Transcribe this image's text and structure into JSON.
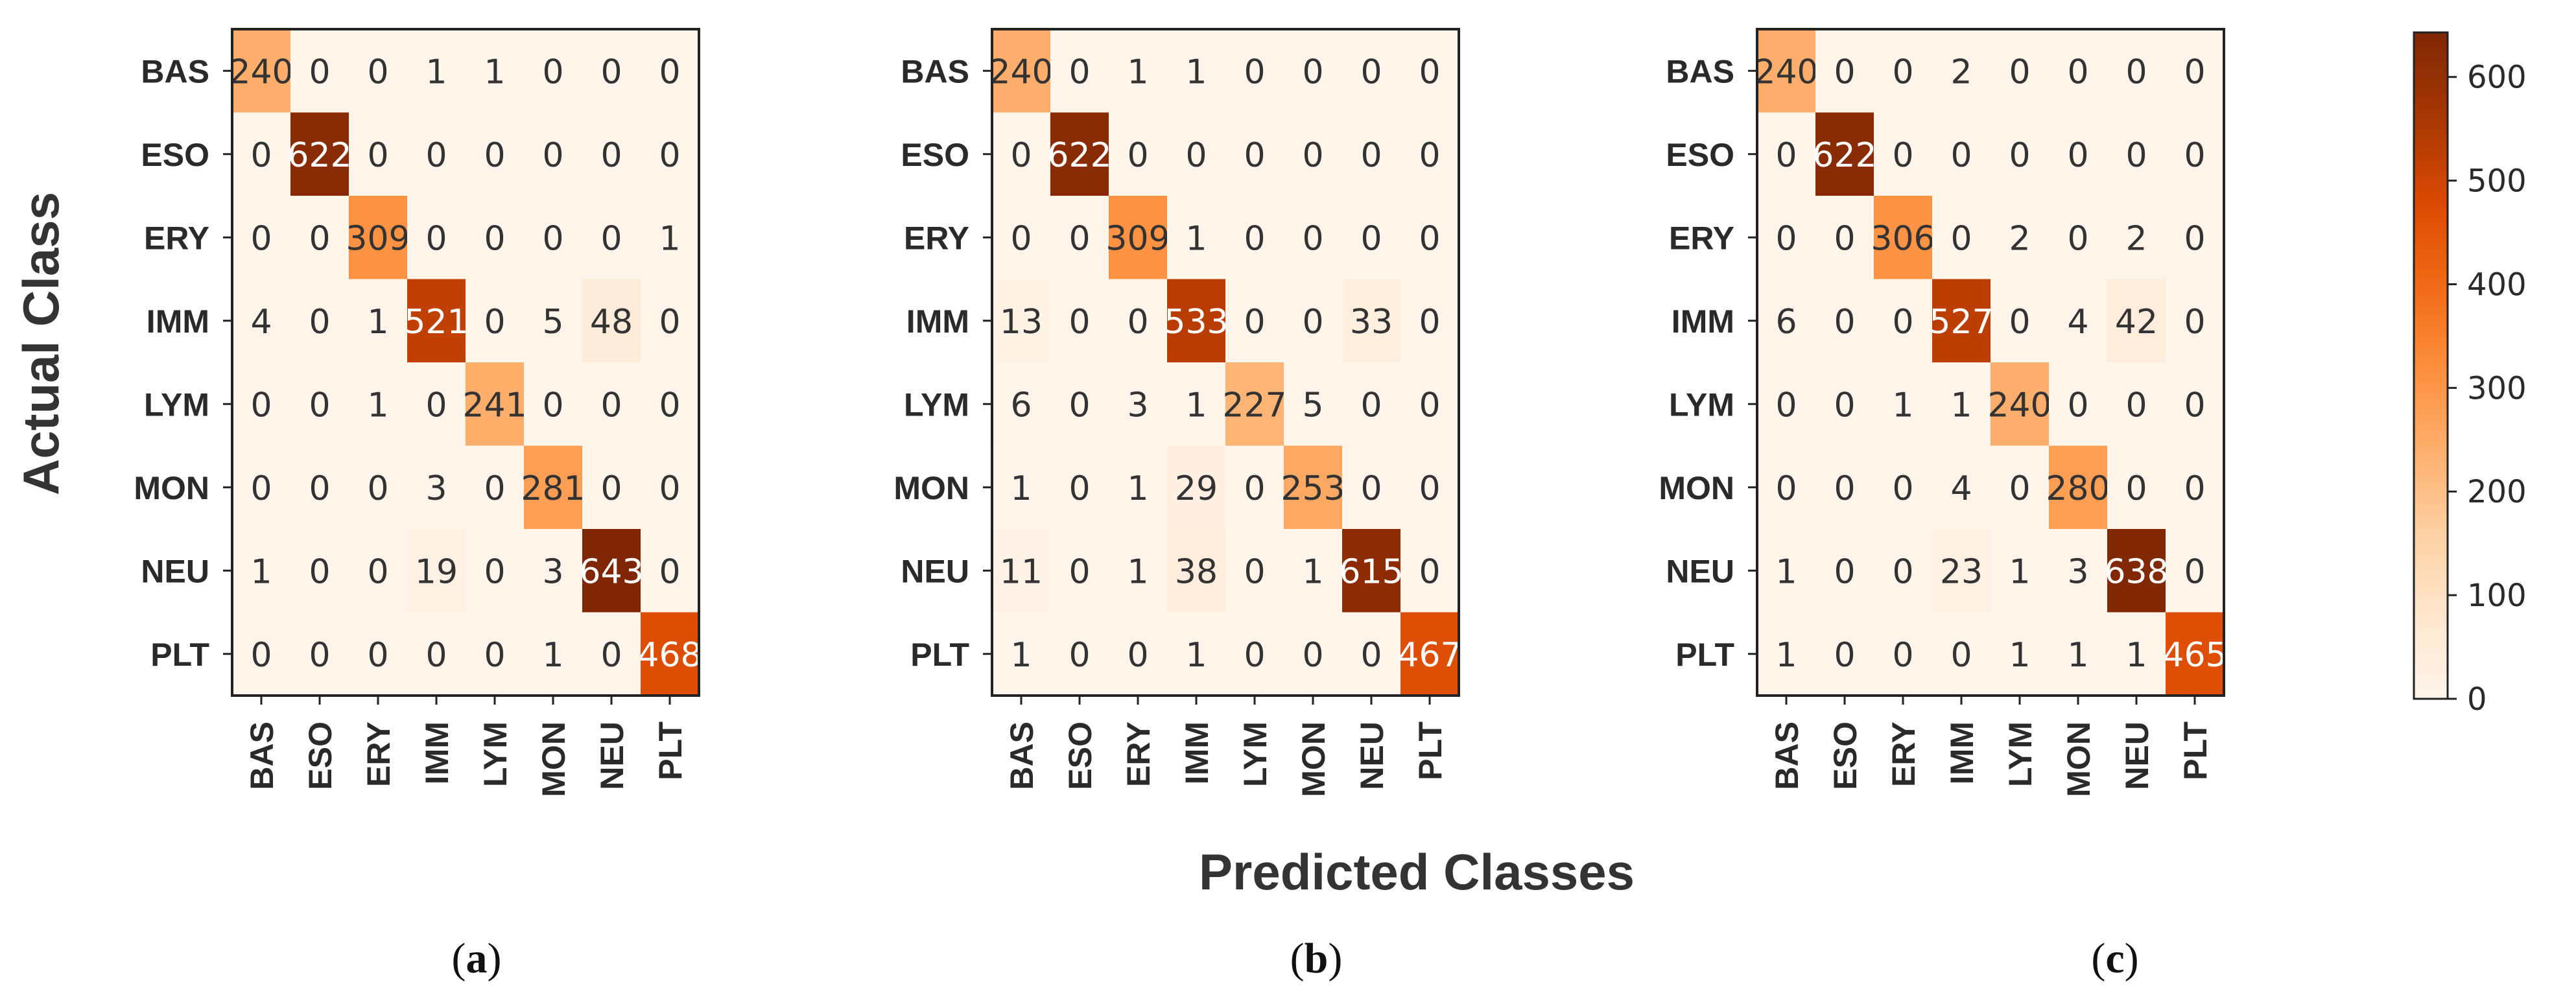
{
  "figure": {
    "xlabel": "Predicted Classes",
    "ylabel": "Actual Class",
    "caption_open": "(",
    "caption_close": ")"
  },
  "colors": {
    "low": "#fff5eb",
    "high": "#7f2704",
    "text_dark": "#333333",
    "text_light": "#ffffff",
    "frame": "#222222"
  },
  "chart_data": [
    {
      "type": "heatmap",
      "panel": "a",
      "title": "",
      "xlabel": "Predicted Classes",
      "ylabel": "Actual Class",
      "classes": [
        "BAS",
        "ESO",
        "ERY",
        "IMM",
        "LYM",
        "MON",
        "NEU",
        "PLT"
      ],
      "matrix": [
        [
          240,
          0,
          0,
          1,
          1,
          0,
          0,
          0
        ],
        [
          0,
          622,
          0,
          0,
          0,
          0,
          0,
          0
        ],
        [
          0,
          0,
          309,
          0,
          0,
          0,
          0,
          1
        ],
        [
          4,
          0,
          1,
          521,
          0,
          5,
          48,
          0
        ],
        [
          0,
          0,
          1,
          0,
          241,
          0,
          0,
          0
        ],
        [
          0,
          0,
          0,
          3,
          0,
          281,
          0,
          0
        ],
        [
          1,
          0,
          0,
          19,
          0,
          3,
          643,
          0
        ],
        [
          0,
          0,
          0,
          0,
          0,
          1,
          0,
          468
        ]
      ],
      "vmin": 0,
      "vmax": 643
    },
    {
      "type": "heatmap",
      "panel": "b",
      "title": "",
      "xlabel": "Predicted Classes",
      "ylabel": "",
      "classes": [
        "BAS",
        "ESO",
        "ERY",
        "IMM",
        "LYM",
        "MON",
        "NEU",
        "PLT"
      ],
      "matrix": [
        [
          240,
          0,
          1,
          1,
          0,
          0,
          0,
          0
        ],
        [
          0,
          622,
          0,
          0,
          0,
          0,
          0,
          0
        ],
        [
          0,
          0,
          309,
          1,
          0,
          0,
          0,
          0
        ],
        [
          13,
          0,
          0,
          533,
          0,
          0,
          33,
          0
        ],
        [
          6,
          0,
          3,
          1,
          227,
          5,
          0,
          0
        ],
        [
          1,
          0,
          1,
          29,
          0,
          253,
          0,
          0
        ],
        [
          11,
          0,
          1,
          38,
          0,
          1,
          615,
          0
        ],
        [
          1,
          0,
          0,
          1,
          0,
          0,
          0,
          467
        ]
      ],
      "vmin": 0,
      "vmax": 643
    },
    {
      "type": "heatmap",
      "panel": "c",
      "title": "",
      "xlabel": "Predicted Classes",
      "ylabel": "",
      "classes": [
        "BAS",
        "ESO",
        "ERY",
        "IMM",
        "LYM",
        "MON",
        "NEU",
        "PLT"
      ],
      "matrix": [
        [
          240,
          0,
          0,
          2,
          0,
          0,
          0,
          0
        ],
        [
          0,
          622,
          0,
          0,
          0,
          0,
          0,
          0
        ],
        [
          0,
          0,
          306,
          0,
          2,
          0,
          2,
          0
        ],
        [
          6,
          0,
          0,
          527,
          0,
          4,
          42,
          0
        ],
        [
          0,
          0,
          1,
          1,
          240,
          0,
          0,
          0
        ],
        [
          0,
          0,
          0,
          4,
          0,
          280,
          0,
          0
        ],
        [
          1,
          0,
          0,
          23,
          1,
          3,
          638,
          0
        ],
        [
          1,
          0,
          0,
          0,
          1,
          1,
          1,
          465
        ]
      ],
      "vmin": 0,
      "vmax": 643
    }
  ],
  "colorbar": {
    "min": 0,
    "max": 643,
    "ticks": [
      0,
      100,
      200,
      300,
      400,
      500,
      600
    ]
  }
}
